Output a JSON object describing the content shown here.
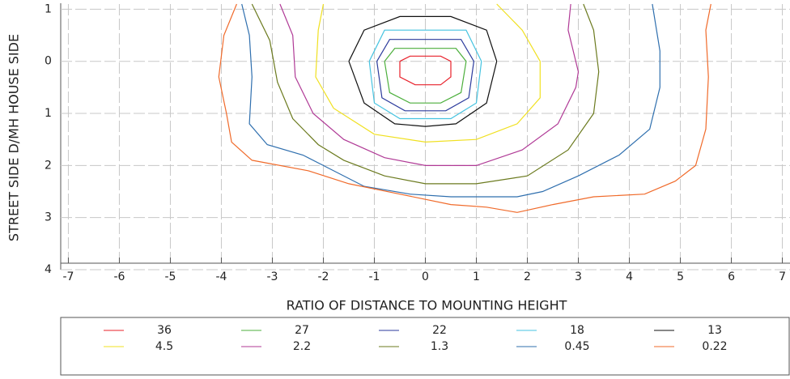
{
  "chart_data": {
    "type": "contour",
    "xlabel": "RATIO OF DISTANCE TO MOUNTING HEIGHT",
    "ylabel": "STREET SIDE  D/MH  HOUSE SIDE",
    "xlim": [
      -7.15,
      7.15
    ],
    "ylim": [
      4,
      -1.1
    ],
    "xticks": [
      -7,
      -6,
      -5,
      -4,
      -3,
      -2,
      -1,
      0,
      1,
      2,
      3,
      4,
      5,
      6,
      7
    ],
    "yticks": [
      {
        "value": -1,
        "label": "1"
      },
      0,
      1,
      2,
      3,
      4
    ],
    "grid": true,
    "series": [
      {
        "name": "36",
        "color": "#e8202a",
        "x": [
          -0.5,
          -0.3,
          0.3,
          0.5,
          0.5,
          0.3,
          -0.2,
          -0.5,
          -0.5
        ],
        "y": [
          0.0,
          -0.1,
          -0.1,
          0.0,
          0.3,
          0.45,
          0.45,
          0.3,
          0.0
        ]
      },
      {
        "name": "27",
        "color": "#4caf3c",
        "x": [
          -0.8,
          -0.6,
          0.6,
          0.8,
          0.7,
          0.3,
          -0.3,
          -0.7,
          -0.8
        ],
        "y": [
          0.0,
          -0.25,
          -0.25,
          0.0,
          0.6,
          0.8,
          0.8,
          0.6,
          0.0
        ]
      },
      {
        "name": "22",
        "color": "#2b3a9c",
        "x": [
          -0.95,
          -0.7,
          0.7,
          0.95,
          0.85,
          0.4,
          -0.4,
          -0.85,
          -0.95
        ],
        "y": [
          0.0,
          -0.42,
          -0.42,
          0.0,
          0.7,
          0.95,
          0.95,
          0.7,
          0.0
        ]
      },
      {
        "name": "18",
        "color": "#45c3e0",
        "x": [
          -1.1,
          -0.8,
          0.8,
          1.1,
          1.0,
          0.5,
          -0.5,
          -1.0,
          -1.1
        ],
        "y": [
          0.0,
          -0.6,
          -0.6,
          0.0,
          0.8,
          1.1,
          1.1,
          0.8,
          0.0
        ]
      },
      {
        "name": "13",
        "color": "#111111",
        "x": [
          -1.5,
          -1.2,
          -0.5,
          0.5,
          1.2,
          1.4,
          1.2,
          0.6,
          0,
          -0.6,
          -1.2,
          -1.5
        ],
        "y": [
          0.0,
          -0.6,
          -0.86,
          -0.86,
          -0.6,
          0.0,
          0.8,
          1.2,
          1.25,
          1.2,
          0.8,
          0.0
        ]
      },
      {
        "name": "4.5",
        "color": "#f0e020",
        "x": [
          -2.0,
          -2.1,
          -2.15,
          -1.8,
          -1.0,
          0,
          1.0,
          1.8,
          2.25,
          2.25,
          1.9,
          1.4
        ],
        "y": [
          -1.1,
          -0.6,
          0.3,
          0.9,
          1.4,
          1.55,
          1.5,
          1.2,
          0.7,
          0,
          -0.6,
          -1.1
        ]
      },
      {
        "name": "2.2",
        "color": "#b03a96",
        "x": [
          -2.85,
          -2.6,
          -2.55,
          -2.2,
          -1.6,
          -0.8,
          0,
          1.0,
          1.9,
          2.6,
          2.95,
          3.0,
          2.8,
          2.85
        ],
        "y": [
          -1.1,
          -0.5,
          0.3,
          1.0,
          1.5,
          1.85,
          2.0,
          2.0,
          1.7,
          1.2,
          0.5,
          0.2,
          -0.6,
          -1.1
        ]
      },
      {
        "name": "1.3",
        "color": "#6b7a1e",
        "x": [
          -3.4,
          -3.05,
          -2.9,
          -2.6,
          -2.1,
          -1.6,
          -0.8,
          0,
          1.0,
          2.0,
          2.8,
          3.3,
          3.4,
          3.3,
          3.1
        ],
        "y": [
          -1.1,
          -0.4,
          0.4,
          1.1,
          1.6,
          1.9,
          2.2,
          2.35,
          2.35,
          2.2,
          1.7,
          1.0,
          0.2,
          -0.6,
          -1.1
        ]
      },
      {
        "name": "0.45",
        "color": "#2f6fae",
        "x": [
          -3.6,
          -3.45,
          -3.4,
          -3.45,
          -3.1,
          -2.4,
          -2.0,
          -1.2,
          -0.3,
          0.5,
          1.2,
          1.8,
          2.3,
          3.0,
          3.8,
          4.4,
          4.6,
          4.6,
          4.45
        ],
        "y": [
          -1.1,
          -0.5,
          0.3,
          1.2,
          1.6,
          1.8,
          2.0,
          2.4,
          2.55,
          2.6,
          2.6,
          2.6,
          2.5,
          2.2,
          1.8,
          1.3,
          0.5,
          -0.2,
          -1.1
        ]
      },
      {
        "name": "0.22",
        "color": "#f06a2a",
        "x": [
          -3.7,
          -3.95,
          -4.05,
          -3.9,
          -3.8,
          -3.4,
          -2.3,
          -1.5,
          -0.5,
          0.5,
          1.2,
          1.8,
          2.5,
          3.3,
          4.3,
          4.9,
          5.3,
          5.5,
          5.55,
          5.5,
          5.6
        ],
        "y": [
          -1.1,
          -0.5,
          0.3,
          1.0,
          1.55,
          1.9,
          2.1,
          2.35,
          2.55,
          2.75,
          2.8,
          2.9,
          2.75,
          2.6,
          2.55,
          2.3,
          2.0,
          1.3,
          0.3,
          -0.6,
          -1.1
        ]
      }
    ]
  }
}
